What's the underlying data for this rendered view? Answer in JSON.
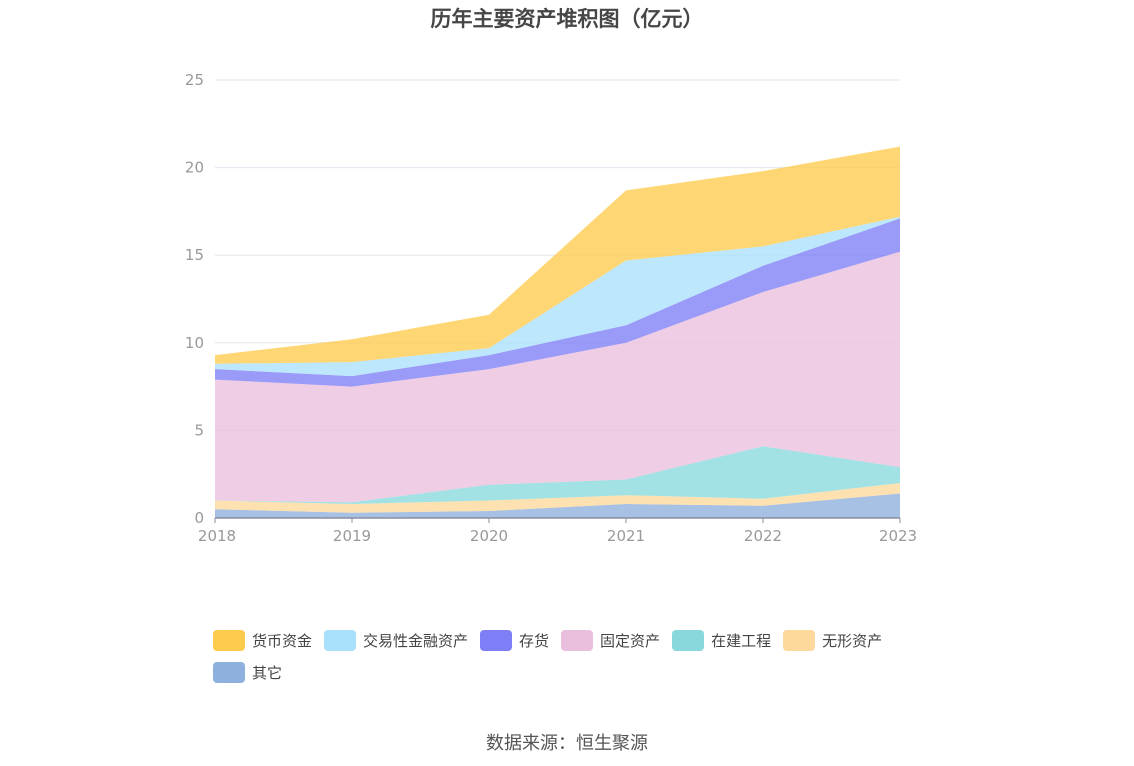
{
  "chart_data": {
    "type": "area",
    "stacked": true,
    "title": "历年主要资产堆积图（亿元）",
    "x": [
      "2018",
      "2019",
      "2020",
      "2021",
      "2022",
      "2023"
    ],
    "ylim": [
      0,
      25
    ],
    "yticks": [
      "0",
      "5",
      "10",
      "15",
      "20",
      "25"
    ],
    "grid": true,
    "legend_position": "bottom",
    "series": [
      {
        "name": "其它",
        "color": "#8eb0dc",
        "values": [
          0.5,
          0.3,
          0.4,
          0.8,
          0.7,
          1.4
        ]
      },
      {
        "name": "无形资产",
        "color": "#fdd99b",
        "values": [
          0.5,
          0.5,
          0.6,
          0.5,
          0.4,
          0.6
        ]
      },
      {
        "name": "在建工程",
        "color": "#88d8dc",
        "values": [
          0.0,
          0.1,
          0.9,
          0.9,
          3.0,
          0.9
        ]
      },
      {
        "name": "固定资产",
        "color": "#eabfdd",
        "values": [
          6.9,
          6.6,
          6.6,
          7.8,
          8.8,
          12.3
        ]
      },
      {
        "name": "存货",
        "color": "#7e7ef6",
        "values": [
          0.6,
          0.6,
          0.8,
          1.0,
          1.5,
          1.9
        ]
      },
      {
        "name": "交易性金融资产",
        "color": "#a9e0fb",
        "values": [
          0.3,
          0.8,
          0.4,
          3.7,
          1.1,
          0.1
        ]
      },
      {
        "name": "货币资金",
        "color": "#fecb4d",
        "values": [
          0.5,
          1.3,
          1.9,
          4.0,
          4.3,
          4.0
        ]
      }
    ],
    "legend_order": [
      "货币资金",
      "交易性金融资产",
      "存货",
      "固定资产",
      "在建工程",
      "无形资产",
      "其它"
    ]
  },
  "source_text": "数据来源：恒生聚源"
}
